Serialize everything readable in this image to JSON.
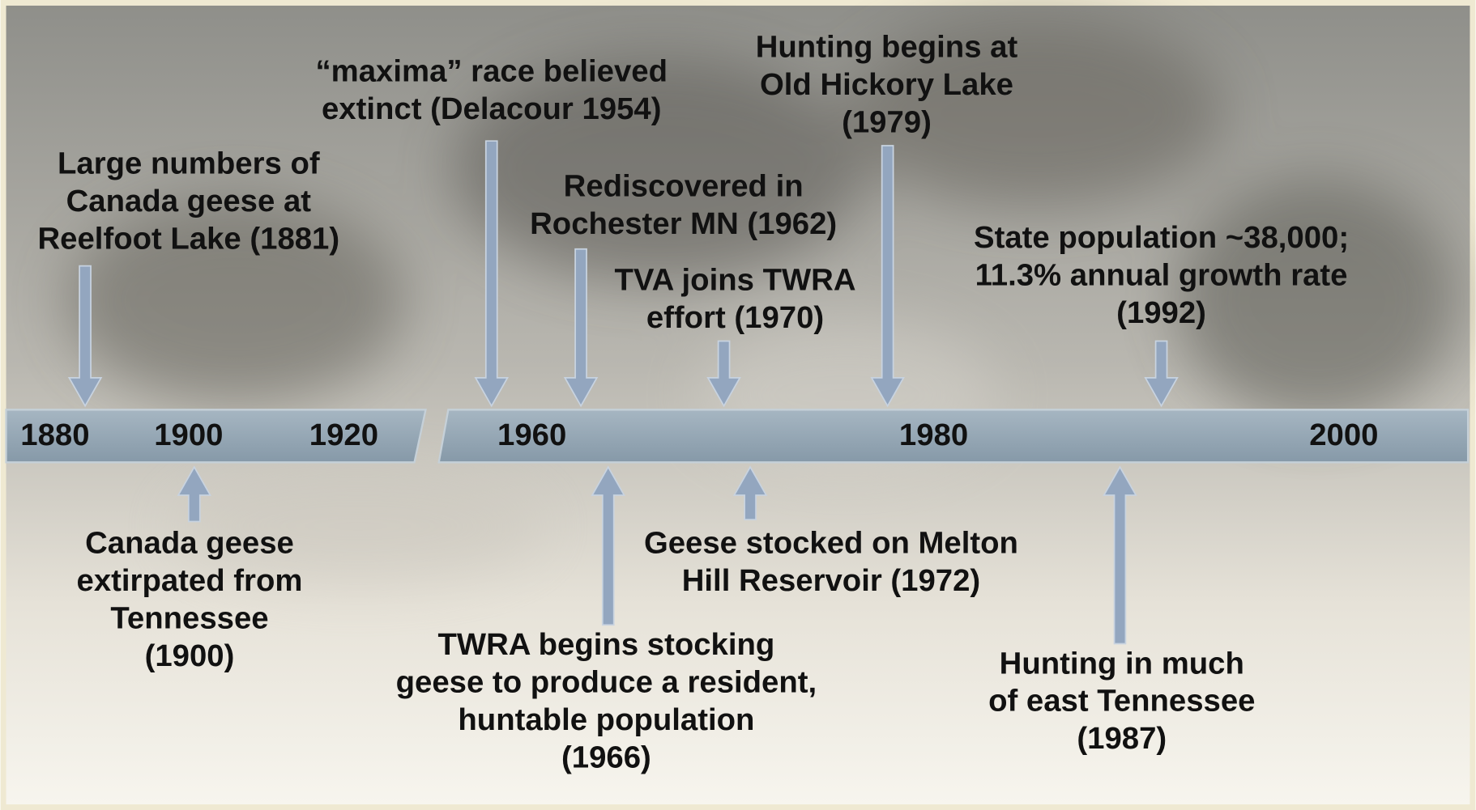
{
  "axis_labels": [
    "1880",
    "1900",
    "1920",
    "1960",
    "1980",
    "2000"
  ],
  "events": [
    {
      "lines": [
        "Large numbers of",
        "Canada geese at",
        "Reelfoot Lake (1881)"
      ]
    },
    {
      "lines": [
        "“maxima” race believed",
        "extinct (Delacour 1954)"
      ]
    },
    {
      "lines": [
        "Rediscovered in",
        "Rochester MN (1962)"
      ]
    },
    {
      "lines": [
        "TVA joins TWRA",
        "effort (1970)"
      ]
    },
    {
      "lines": [
        "Hunting begins at",
        "Old Hickory Lake",
        "(1979)"
      ]
    },
    {
      "lines": [
        "State population ~38,000;",
        "11.3% annual growth rate",
        "(1992)"
      ]
    },
    {
      "lines": [
        "Canada geese",
        "extirpated from",
        "Tennessee",
        "(1900)"
      ]
    },
    {
      "lines": [
        "TWRA begins stocking",
        "geese to produce a resident,",
        "huntable population",
        "(1966)"
      ]
    },
    {
      "lines": [
        "Geese stocked on Melton",
        "Hill Reservoir (1972)"
      ]
    },
    {
      "lines": [
        "Hunting in much",
        "of east Tennessee",
        "(1987)"
      ]
    }
  ]
}
